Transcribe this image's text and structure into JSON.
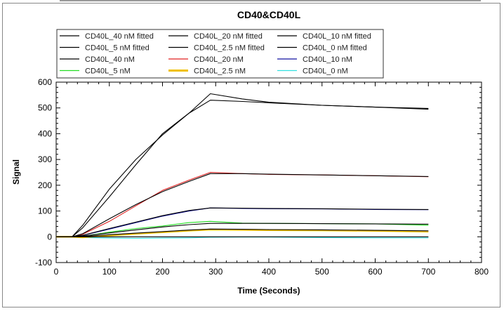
{
  "chart_data": {
    "type": "line",
    "title": "CD40&CD40L",
    "xlabel": "Time (Seconds)",
    "ylabel": "Signal",
    "xlim": [
      0,
      800
    ],
    "ylim": [
      -100,
      600
    ],
    "xticks": [
      0,
      100,
      200,
      300,
      400,
      500,
      600,
      700,
      800
    ],
    "yticks": [
      -100,
      0,
      100,
      200,
      300,
      400,
      500,
      600
    ],
    "grid": false,
    "legend": "top-left",
    "x": [
      0,
      30,
      50,
      100,
      150,
      200,
      250,
      290,
      350,
      400,
      500,
      600,
      700
    ],
    "series": [
      {
        "name": "CD40L_40 nM fitted",
        "color": "#000000",
        "values": [
          0,
          0,
          35,
          155,
          280,
          400,
          480,
          530,
          525,
          520,
          510,
          503,
          498
        ]
      },
      {
        "name": "CD40L_20 nM fitted",
        "color": "#000000",
        "values": [
          0,
          0,
          12,
          70,
          125,
          175,
          215,
          245,
          245,
          243,
          240,
          237,
          234
        ]
      },
      {
        "name": "CD40L_10 nM fitted",
        "color": "#000000",
        "values": [
          0,
          0,
          6,
          32,
          57,
          82,
          102,
          112,
          111,
          110,
          109,
          107,
          106
        ]
      },
      {
        "name": "CD40L_5 nM fitted",
        "color": "#000000",
        "values": [
          0,
          0,
          3,
          15,
          27,
          38,
          47,
          52,
          52,
          52,
          51,
          50,
          49
        ]
      },
      {
        "name": "CD40L_2.5 nM fitted",
        "color": "#000000",
        "values": [
          0,
          0,
          1,
          8,
          14,
          20,
          26,
          30,
          29,
          28,
          27,
          25,
          23
        ]
      },
      {
        "name": "CD40L_0 nM fitted",
        "color": "#000000",
        "values": [
          0,
          0,
          0,
          0,
          0,
          0,
          0,
          0,
          0,
          0,
          0,
          0,
          0
        ]
      },
      {
        "name": "CD40L_40 nM",
        "color": "#000000",
        "values": [
          0,
          0,
          45,
          185,
          300,
          395,
          480,
          555,
          535,
          522,
          510,
          503,
          495
        ]
      },
      {
        "name": "CD40L_20 nM",
        "color": "#e02020",
        "values": [
          0,
          0,
          10,
          60,
          120,
          180,
          220,
          250,
          245,
          242,
          240,
          237,
          233
        ]
      },
      {
        "name": "CD40L_10 nM",
        "color": "#1010a0",
        "values": [
          0,
          0,
          5,
          30,
          55,
          80,
          100,
          112,
          110,
          109,
          108,
          106,
          105
        ]
      },
      {
        "name": "CD40L_5 nM",
        "color": "#22dd22",
        "values": [
          0,
          0,
          2,
          18,
          32,
          42,
          55,
          60,
          53,
          52,
          51,
          50,
          45
        ]
      },
      {
        "name": "CD40L_2.5 nM",
        "color": "#f0c000",
        "values": [
          0,
          0,
          -2,
          5,
          12,
          18,
          24,
          28,
          27,
          26,
          25,
          23,
          20
        ]
      },
      {
        "name": "CD40L_0 nM",
        "color": "#30e0e0",
        "values": [
          0,
          0,
          -3,
          -5,
          -6,
          -5,
          -4,
          -2,
          -1,
          -1,
          -3,
          -4,
          -4
        ]
      }
    ]
  }
}
